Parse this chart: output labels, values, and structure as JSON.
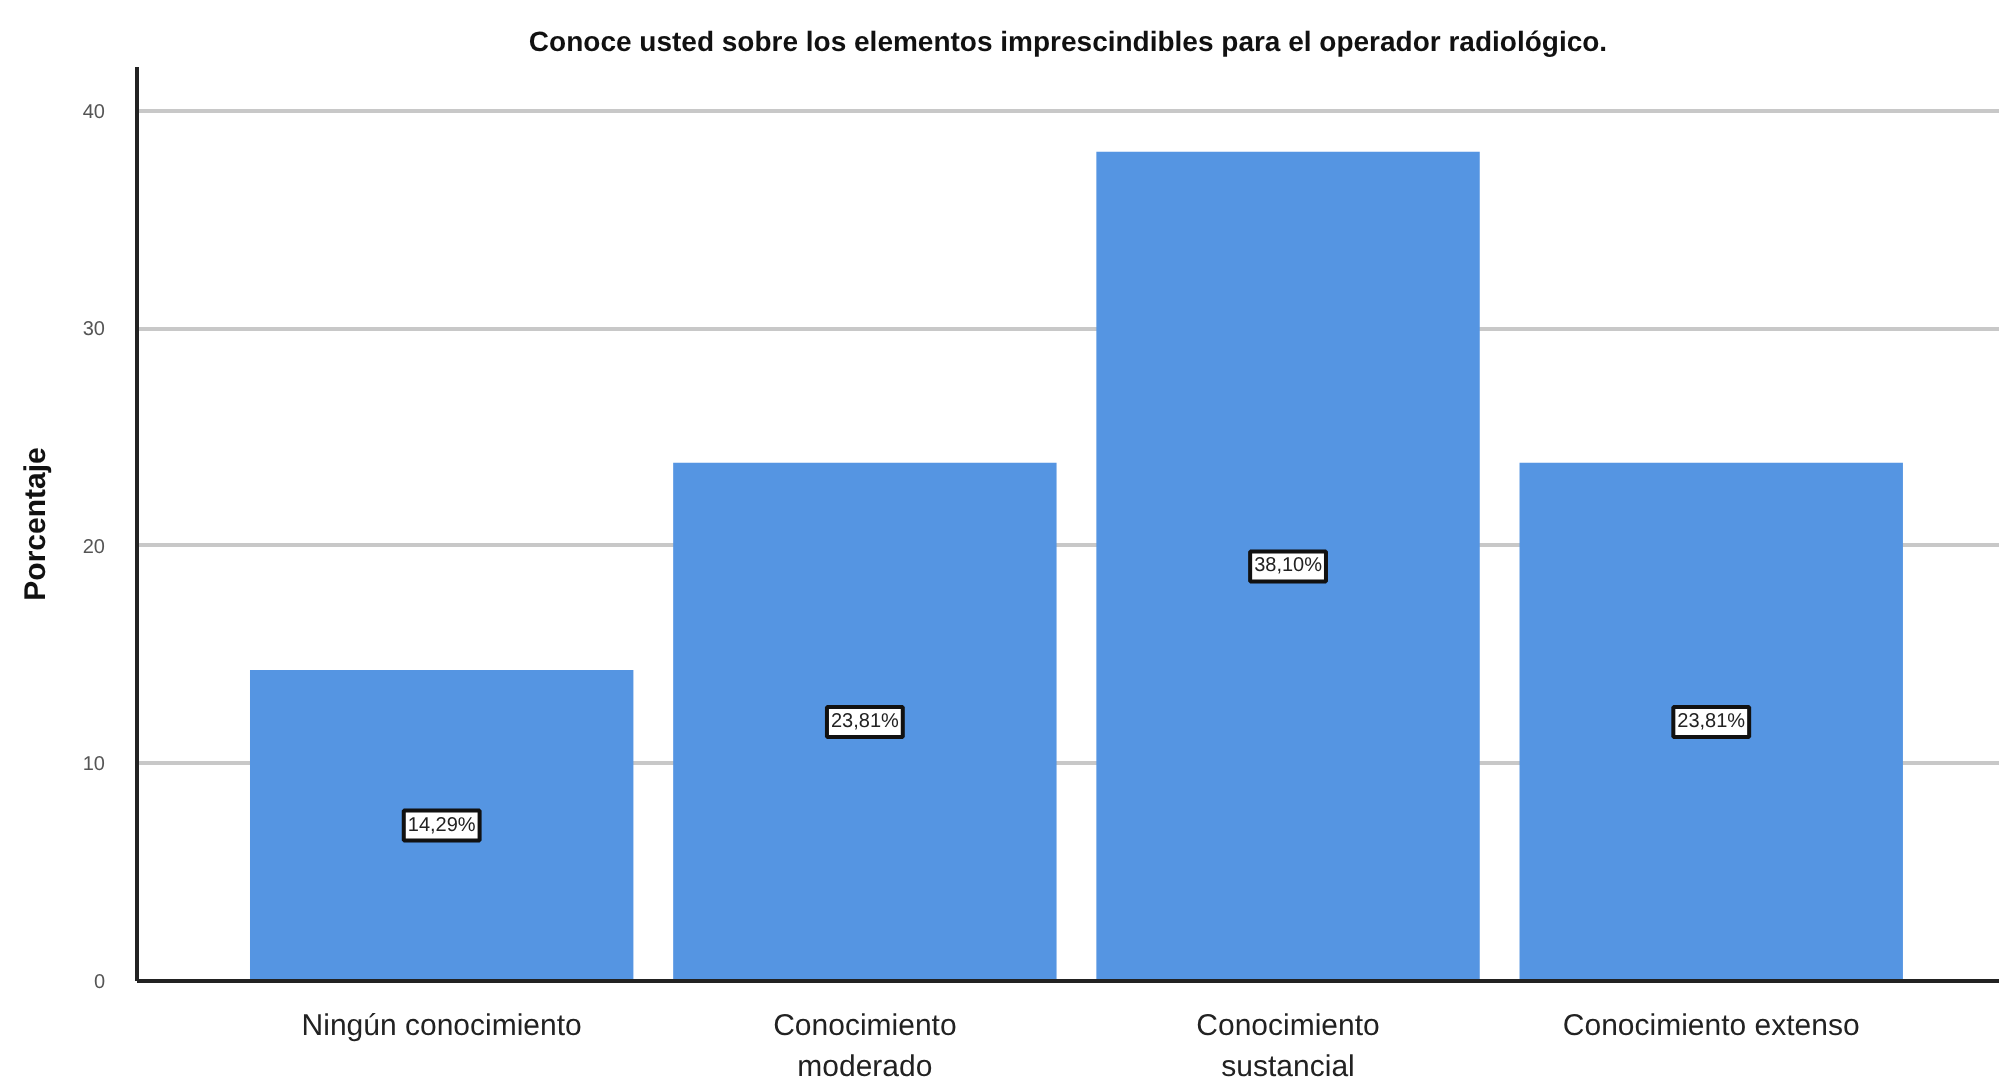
{
  "chart_data": {
    "type": "bar",
    "title": "Conoce usted sobre los elementos imprescindibles para el operador radiológico.",
    "ylabel": "Porcentaje",
    "categories": [
      "Ningún conocimiento",
      "Conocimiento moderado",
      "Conocimiento sustancial",
      "Conocimiento extenso"
    ],
    "values": [
      14.29,
      23.81,
      38.1,
      23.81
    ],
    "value_labels": [
      "14,29%",
      "23,81%",
      "38,10%",
      "23,81%"
    ],
    "color": "#5595e2",
    "ylim": [
      0,
      42
    ],
    "yticks": [
      0,
      10,
      20,
      30,
      40
    ],
    "grid": "y"
  }
}
